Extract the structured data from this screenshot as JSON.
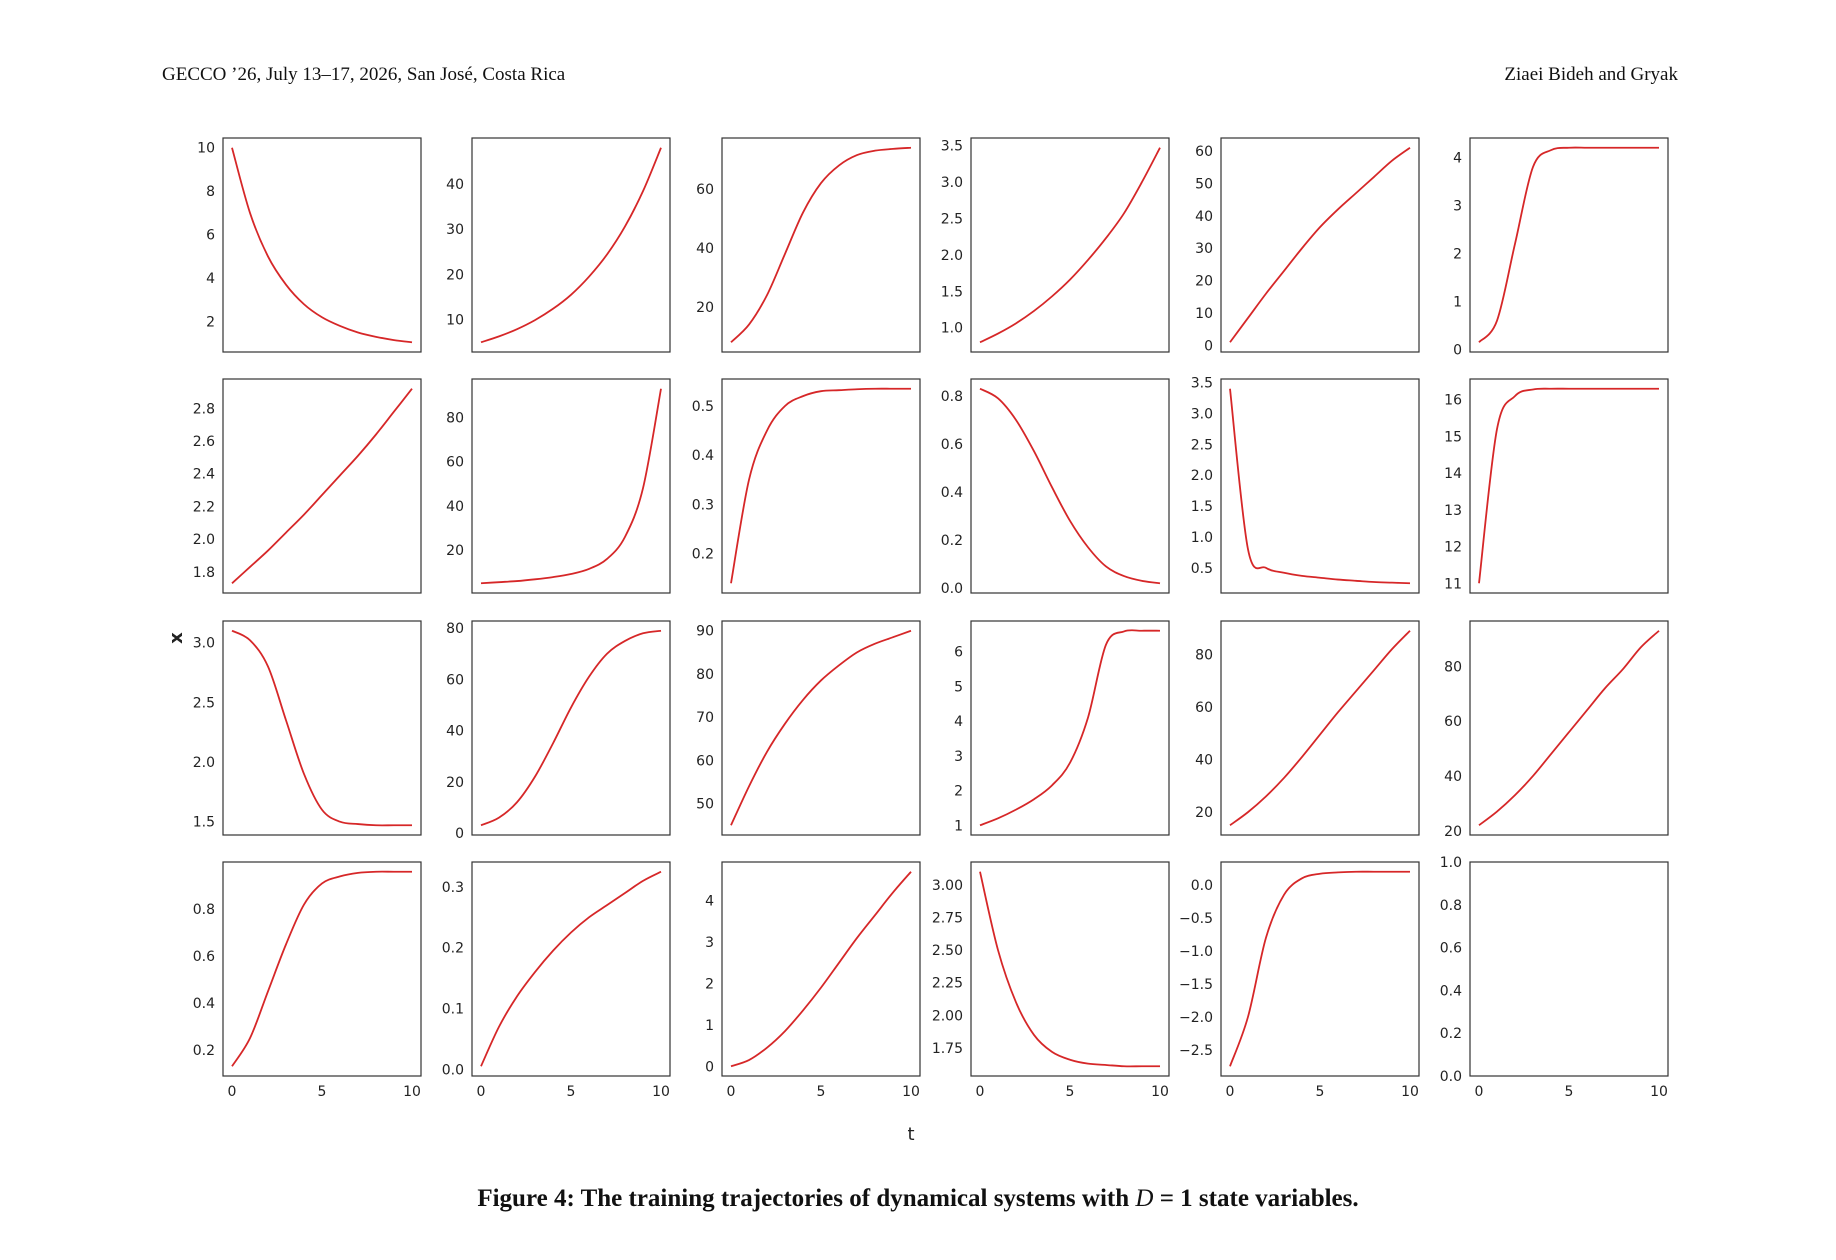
{
  "header": {
    "left": "GECCO ’26, July 13–17, 2026, San José, Costa Rica",
    "right": "Ziaei Bideh and Gryak"
  },
  "caption": {
    "prefix": "Figure 4: The training trajectories of dynamical systems with ",
    "var": "D",
    "suffix": " = 1 state variables."
  },
  "chart_data": {
    "type": "line",
    "layout": "4x6 grid of small multiples",
    "xlabel": "t",
    "ylabel": "x",
    "line_color": "#d62728",
    "grid": false,
    "x": [
      0,
      1,
      2,
      3,
      4,
      5,
      6,
      7,
      8,
      9,
      10
    ],
    "xticks": [
      "0",
      "5",
      "10"
    ],
    "panels": [
      {
        "yticks": [
          "2",
          "4",
          "6",
          "8",
          "10"
        ],
        "values": [
          10,
          7.0,
          5.0,
          3.7,
          2.8,
          2.2,
          1.8,
          1.5,
          1.3,
          1.15,
          1.05
        ]
      },
      {
        "yticks": [
          "10",
          "20",
          "30",
          "40"
        ],
        "values": [
          5,
          6.3,
          7.9,
          9.9,
          12.4,
          15.5,
          19.5,
          24.4,
          30.6,
          38.4,
          48
        ]
      },
      {
        "yticks": [
          "20",
          "40",
          "60"
        ],
        "values": [
          8,
          14,
          24,
          38,
          52,
          62,
          68,
          71.5,
          73,
          73.6,
          74
        ]
      },
      {
        "yticks": [
          "1.0",
          "1.5",
          "2.0",
          "2.5",
          "3.0",
          "3.5"
        ],
        "values": [
          0.8,
          0.92,
          1.06,
          1.23,
          1.43,
          1.66,
          1.93,
          2.23,
          2.57,
          3.0,
          3.47
        ]
      },
      {
        "yticks": [
          "0",
          "10",
          "20",
          "30",
          "40",
          "50",
          "60"
        ],
        "values": [
          1,
          8.5,
          16,
          23,
          30,
          36.5,
          42,
          47,
          52,
          57,
          61
        ]
      },
      {
        "yticks": [
          "0",
          "1",
          "2",
          "3",
          "4"
        ],
        "values": [
          0.15,
          0.6,
          2.2,
          3.8,
          4.15,
          4.2,
          4.2,
          4.2,
          4.2,
          4.2,
          4.2
        ]
      },
      {
        "yticks": [
          "1.8",
          "2.0",
          "2.2",
          "2.4",
          "2.6",
          "2.8"
        ],
        "values": [
          1.73,
          1.83,
          1.93,
          2.04,
          2.15,
          2.27,
          2.39,
          2.51,
          2.64,
          2.78,
          2.92
        ]
      },
      {
        "yticks": [
          "20",
          "40",
          "60",
          "80"
        ],
        "values": [
          5,
          5.5,
          6,
          6.8,
          7.8,
          9.2,
          11.5,
          16,
          26,
          48,
          93
        ]
      },
      {
        "yticks": [
          "0.2",
          "0.3",
          "0.4",
          "0.5"
        ],
        "values": [
          0.14,
          0.35,
          0.45,
          0.5,
          0.52,
          0.53,
          0.532,
          0.534,
          0.535,
          0.535,
          0.535
        ]
      },
      {
        "yticks": [
          "0.0",
          "0.2",
          "0.4",
          "0.6",
          "0.8"
        ],
        "values": [
          0.83,
          0.79,
          0.7,
          0.57,
          0.42,
          0.28,
          0.17,
          0.09,
          0.05,
          0.03,
          0.02
        ]
      },
      {
        "yticks": [
          "0.5",
          "1.0",
          "1.5",
          "2.0",
          "2.5",
          "3.0",
          "3.5"
        ],
        "values": [
          3.4,
          0.8,
          0.5,
          0.42,
          0.37,
          0.34,
          0.31,
          0.29,
          0.27,
          0.26,
          0.25
        ]
      },
      {
        "yticks": [
          "11",
          "12",
          "13",
          "14",
          "15",
          "16"
        ],
        "values": [
          11,
          15.2,
          16.1,
          16.28,
          16.3,
          16.3,
          16.3,
          16.3,
          16.3,
          16.3,
          16.3
        ]
      },
      {
        "yticks": [
          "1.5",
          "2.0",
          "2.5",
          "3.0"
        ],
        "values": [
          3.1,
          3.02,
          2.8,
          2.35,
          1.9,
          1.6,
          1.5,
          1.48,
          1.47,
          1.47,
          1.47
        ]
      },
      {
        "yticks": [
          "0",
          "20",
          "40",
          "60",
          "80"
        ],
        "values": [
          3,
          6,
          12,
          22,
          35,
          49,
          61,
          70,
          75,
          78,
          79
        ]
      },
      {
        "yticks": [
          "50",
          "60",
          "70",
          "80",
          "90"
        ],
        "values": [
          45,
          54,
          62,
          68.5,
          74,
          78.5,
          82,
          85,
          87,
          88.5,
          90
        ]
      },
      {
        "yticks": [
          "1",
          "2",
          "3",
          "4",
          "5",
          "6"
        ],
        "values": [
          1,
          1.2,
          1.45,
          1.75,
          2.15,
          2.8,
          4.1,
          6.2,
          6.58,
          6.6,
          6.6
        ]
      },
      {
        "yticks": [
          "20",
          "40",
          "60",
          "80"
        ],
        "values": [
          15,
          20,
          26,
          33,
          41,
          49.5,
          58,
          66,
          74,
          82,
          89
        ]
      },
      {
        "yticks": [
          "20",
          "40",
          "60",
          "80"
        ],
        "values": [
          22,
          27,
          33,
          40,
          48,
          56,
          64,
          72,
          79,
          87,
          93
        ]
      },
      {
        "yticks": [
          "0.2",
          "0.4",
          "0.6",
          "0.8"
        ],
        "values": [
          0.13,
          0.25,
          0.45,
          0.65,
          0.82,
          0.91,
          0.94,
          0.955,
          0.96,
          0.96,
          0.96
        ]
      },
      {
        "yticks": [
          "0.0",
          "0.1",
          "0.2",
          "0.3"
        ],
        "values": [
          0.005,
          0.07,
          0.12,
          0.16,
          0.195,
          0.225,
          0.25,
          0.27,
          0.29,
          0.31,
          0.325
        ]
      },
      {
        "yticks": [
          "0",
          "1",
          "2",
          "3",
          "4"
        ],
        "values": [
          0,
          0.15,
          0.45,
          0.85,
          1.35,
          1.9,
          2.5,
          3.1,
          3.65,
          4.2,
          4.7
        ]
      },
      {
        "yticks": [
          "1.75",
          "2.00",
          "2.25",
          "2.50",
          "2.75",
          "3.00"
        ],
        "values": [
          3.1,
          2.5,
          2.1,
          1.85,
          1.72,
          1.66,
          1.63,
          1.62,
          1.61,
          1.61,
          1.61
        ]
      },
      {
        "yticks": [
          "−2.5",
          "−2.0",
          "−1.5",
          "−1.0",
          "−0.5",
          "0.0"
        ],
        "values": [
          -2.75,
          -2.0,
          -0.8,
          -0.15,
          0.1,
          0.17,
          0.19,
          0.2,
          0.2,
          0.2,
          0.2
        ]
      },
      {
        "yticks": [
          "0.0",
          "0.2",
          "0.4",
          "0.6",
          "0.8",
          "1.0"
        ],
        "values": [],
        "ylim": [
          0,
          1
        ]
      }
    ]
  }
}
